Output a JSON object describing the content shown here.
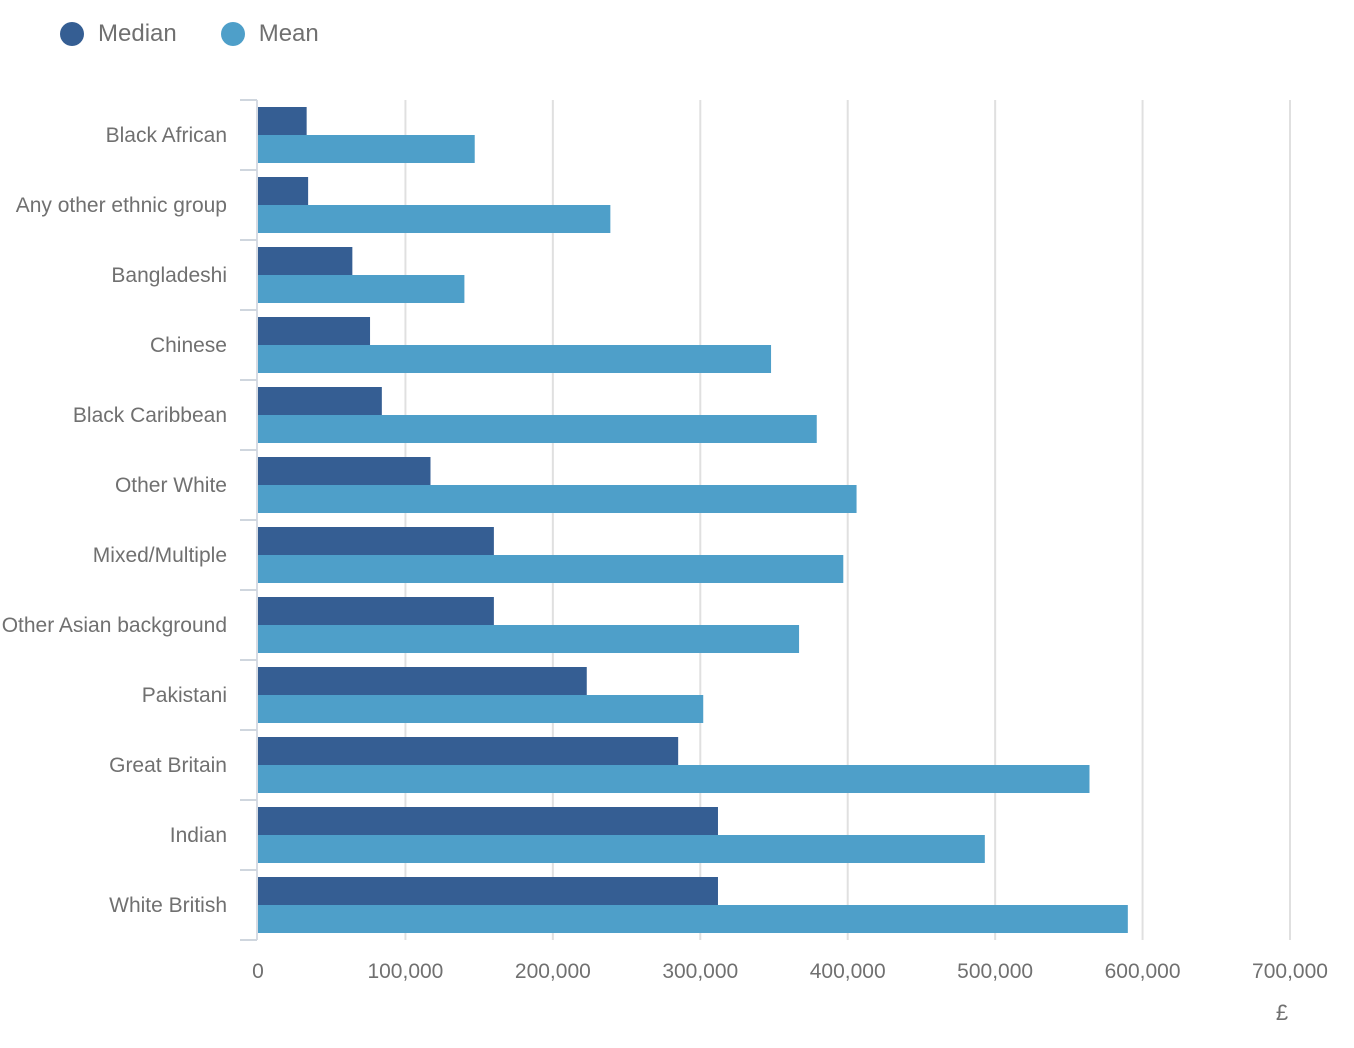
{
  "chart_data": {
    "type": "bar",
    "orientation": "horizontal",
    "categories": [
      "Black African",
      "Any other ethnic group",
      "Bangladeshi",
      "Chinese",
      "Black Caribbean",
      "Other White",
      "Mixed/Multiple",
      "Other Asian background",
      "Pakistani",
      "Great Britain",
      "Indian",
      "White British"
    ],
    "series": [
      {
        "name": "Median",
        "color": "#355e93",
        "values": [
          33000,
          34000,
          64000,
          76000,
          84000,
          117000,
          160000,
          160000,
          223000,
          285000,
          312000,
          312000
        ]
      },
      {
        "name": "Mean",
        "color": "#4e9fc9",
        "values": [
          147000,
          239000,
          140000,
          348000,
          379000,
          406000,
          397000,
          367000,
          302000,
          564000,
          493000,
          590000
        ]
      }
    ],
    "x_ticks": [
      "0",
      "100,000",
      "200,000",
      "300,000",
      "400,000",
      "500,000",
      "600,000",
      "700,000"
    ],
    "xlim": [
      0,
      700000
    ],
    "xlabel": "£",
    "ylabel": "",
    "grid": true,
    "legend_position": "top-left"
  }
}
